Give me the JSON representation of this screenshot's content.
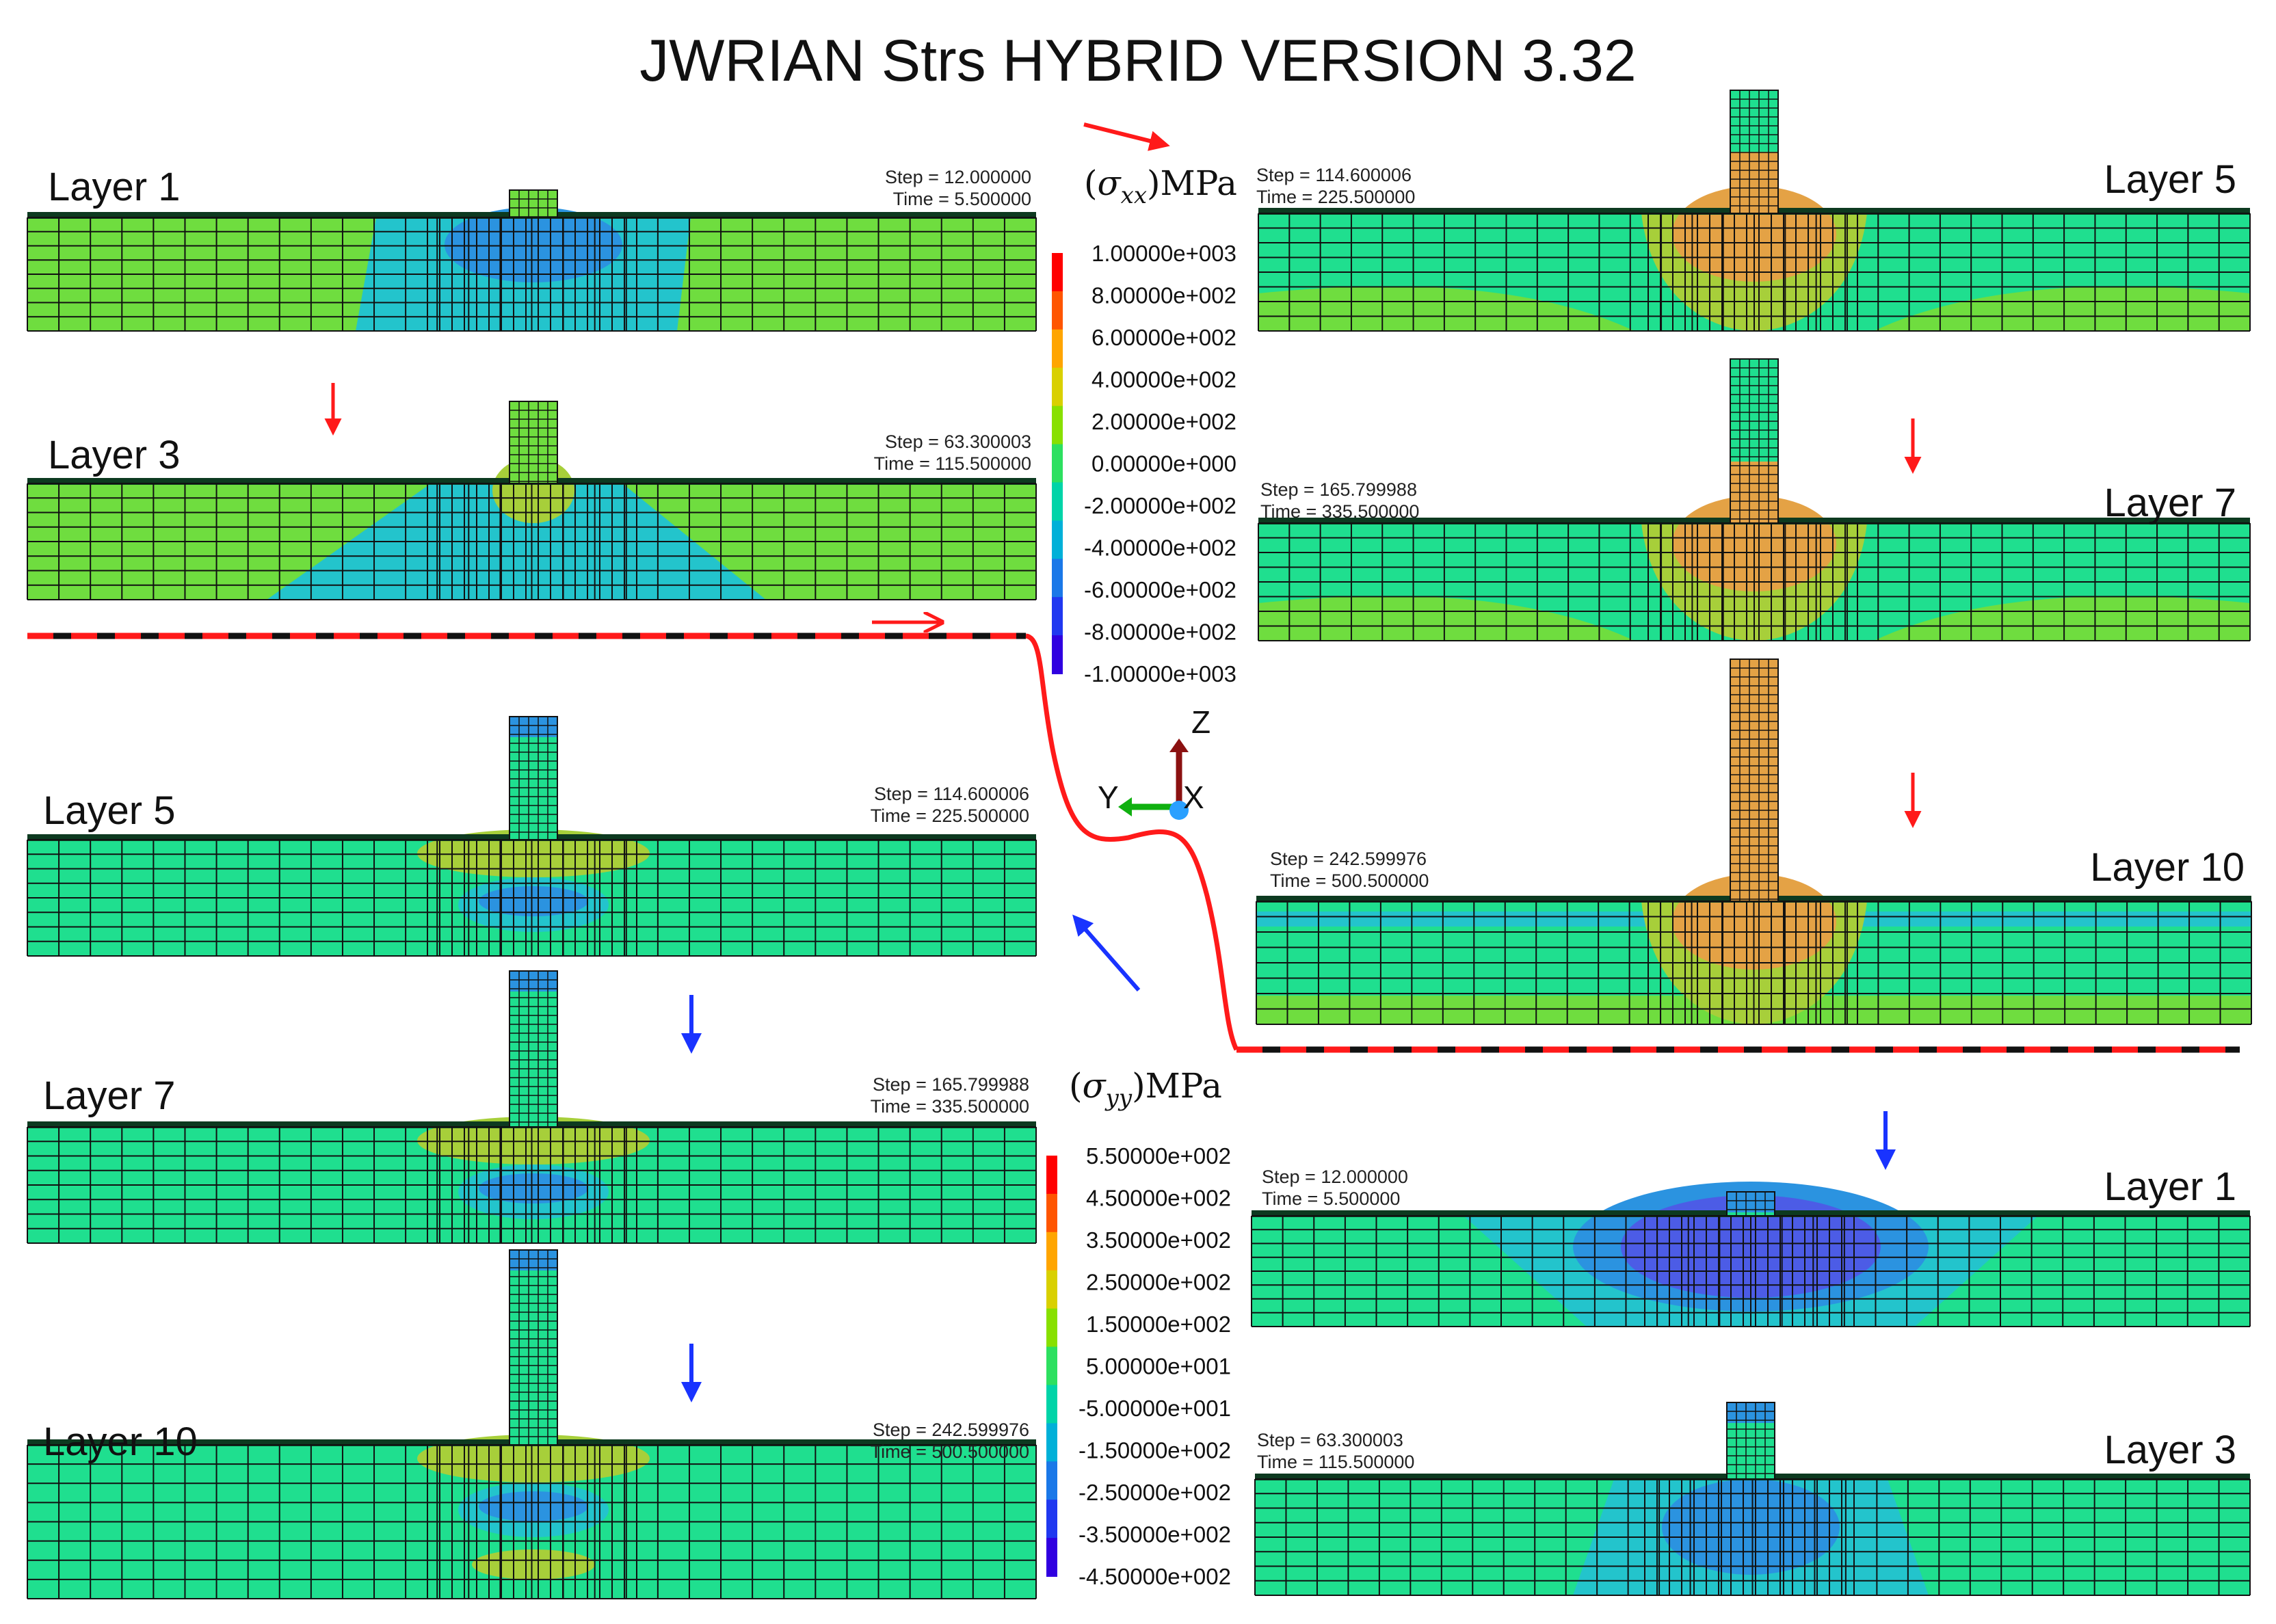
{
  "title": "JWRIAN Strs HYBRID VERSION 3.32",
  "colors": {
    "bg_green": "#6fdd3f",
    "teal": "#1fdf8f",
    "cyan": "#23c4cc",
    "blue_mid": "#2b93e0",
    "deep_blue": "#4c5ce6",
    "yellow_green": "#a7cf3a",
    "orange": "#e4a245",
    "cap": "#0d3a20",
    "red": "#ff1a1a",
    "arrow_blue": "#1933ff"
  },
  "sxx_legend": {
    "unit_var": "σ",
    "unit_sub": "xx",
    "unit": "MPa",
    "ticks": [
      "1.00000e+003",
      "8.00000e+002",
      "6.00000e+002",
      "4.00000e+002",
      "2.00000e+002",
      "0.00000e+000",
      "-2.00000e+002",
      "-4.00000e+002",
      "-6.00000e+002",
      "-8.00000e+002",
      "-1.00000e+003"
    ],
    "colors": [
      "#ff0000",
      "#ff5500",
      "#ffa500",
      "#d9d000",
      "#88e000",
      "#2de060",
      "#00d4a8",
      "#00b0d8",
      "#1a78e8",
      "#2038f0",
      "#3000e0"
    ]
  },
  "syy_legend": {
    "unit_var": "σ",
    "unit_sub": "yy",
    "unit": "MPa",
    "ticks": [
      "5.50000e+002",
      "4.50000e+002",
      "3.50000e+002",
      "2.50000e+002",
      "1.50000e+002",
      "5.00000e+001",
      "-5.00000e+001",
      "-1.50000e+002",
      "-2.50000e+002",
      "-3.50000e+002",
      "-4.50000e+002"
    ],
    "colors": [
      "#ff0000",
      "#ff5500",
      "#ffa500",
      "#d9d000",
      "#88e000",
      "#2de060",
      "#00d4a8",
      "#00b0d8",
      "#1a78e8",
      "#2038f0",
      "#3000e0"
    ]
  },
  "axes_triad": {
    "z": "Z",
    "y": "Y",
    "x": "X"
  },
  "panels": [
    {
      "label": "Layer 1",
      "step": "Step = 12.000000",
      "time": "Time = 5.500000",
      "field": "sxx"
    },
    {
      "label": "Layer 3",
      "step": "Step = 63.300003",
      "time": "Time = 115.500000",
      "field": "sxx"
    },
    {
      "label": "Layer 5",
      "step": "Step = 114.600006",
      "time": "Time = 225.500000",
      "field": "sxx"
    },
    {
      "label": "Layer 7",
      "step": "Step = 165.799988",
      "time": "Time = 335.500000",
      "field": "sxx"
    },
    {
      "label": "Layer 10",
      "step": "Step = 242.599976",
      "time": "Time = 500.500000",
      "field": "sxx"
    },
    {
      "label": "Layer 5",
      "step": "Step = 114.600006",
      "time": "Time = 225.500000",
      "field": "syy"
    },
    {
      "label": "Layer 7",
      "step": "Step = 165.799988",
      "time": "Time = 335.500000",
      "field": "syy"
    },
    {
      "label": "Layer 10",
      "step": "Step = 242.599976",
      "time": "Time = 500.500000",
      "field": "syy"
    },
    {
      "label": "Layer 1",
      "step": "Step = 12.000000",
      "time": "Time = 5.500000",
      "field": "syy"
    },
    {
      "label": "Layer 3",
      "step": "Step = 63.300003",
      "time": "Time = 115.500000",
      "field": "syy"
    }
  ]
}
